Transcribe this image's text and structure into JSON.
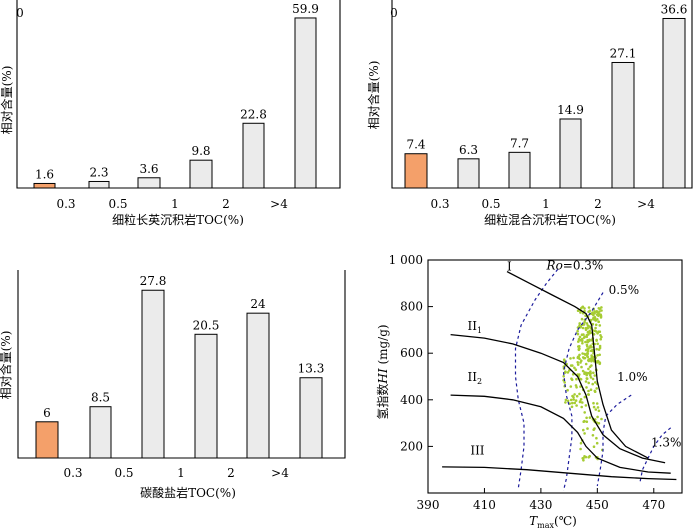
{
  "chart_data": [
    {
      "type": "bar",
      "xlabel": "细粒长英沉积岩TOC(%)",
      "ylabel": "相对含量(%)",
      "tick_labels": [
        "0",
        "0.3",
        "0.5",
        "1",
        "2",
        ">4"
      ],
      "categories": [
        "0-0.3",
        "0.3-0.5",
        "0.5-1",
        "1-2",
        "2-4",
        ">4"
      ],
      "values": [
        1.6,
        2.3,
        3.6,
        9.8,
        22.8,
        59.9
      ],
      "value_labels": [
        "1.6",
        "2.3",
        "3.6",
        "9.8",
        "22.8",
        "59.9"
      ],
      "highlight_index": 0,
      "colors": {
        "highlight": "#f4a06a",
        "bar": "#ebebeb"
      }
    },
    {
      "type": "bar",
      "xlabel": "细粒混合沉积岩TOC(%)",
      "ylabel": "相对含量(%)",
      "tick_labels": [
        "0",
        "0.3",
        "0.5",
        "1",
        "2",
        ">4"
      ],
      "categories": [
        "0-0.3",
        "0.3-0.5",
        "0.5-1",
        "1-2",
        "2-4",
        ">4"
      ],
      "values": [
        7.4,
        6.3,
        7.7,
        14.9,
        27.1,
        36.6
      ],
      "value_labels": [
        "7.4",
        "6.3",
        "7.7",
        "14.9",
        "27.1",
        "36.6"
      ],
      "highlight_index": 0,
      "colors": {
        "highlight": "#f4a06a",
        "bar": "#ebebeb"
      }
    },
    {
      "type": "bar",
      "xlabel": "碳酸盐岩TOC(%)",
      "ylabel": "相对含量(%)",
      "tick_labels": [
        "0.3",
        "0.5",
        "1",
        "2",
        ">4"
      ],
      "categories": [
        "0-0.3",
        "0.3-0.5",
        "0.5-1",
        "1-2",
        "2-4",
        ">4"
      ],
      "values": [
        6,
        8.5,
        27.8,
        20.5,
        24,
        13.3
      ],
      "value_labels": [
        "6",
        "8.5",
        "27.8",
        "20.5",
        "24",
        "13.3"
      ],
      "highlight_index": 0,
      "colors": {
        "highlight": "#f4a06a",
        "bar": "#ebebeb"
      }
    },
    {
      "type": "scatter",
      "xlabel_main": "T",
      "xlabel_sub": "max",
      "xlabel_unit": "(℃)",
      "ylabel_prefix": "氢指数",
      "ylabel_italic": "HI",
      "ylabel_unit": " (mg/g)",
      "xlim": [
        390,
        480
      ],
      "ylim": [
        0,
        1000
      ],
      "x_ticks": [
        390,
        410,
        430,
        450,
        470
      ],
      "x_tick_labels": [
        "390",
        "410",
        "430",
        "450",
        "470"
      ],
      "y_ticks": [
        200,
        400,
        600,
        800,
        1000
      ],
      "y_tick_labels": [
        "200",
        "400",
        "600",
        "800",
        "1 000"
      ],
      "kerogen_labels": [
        {
          "label": "I",
          "sub": "",
          "x": 418,
          "y": 955
        },
        {
          "label": "II",
          "sub": "1",
          "x": 404,
          "y": 700
        },
        {
          "label": "II",
          "sub": "2",
          "x": 404,
          "y": 480
        },
        {
          "label": "III",
          "sub": "",
          "x": 405,
          "y": 165
        }
      ],
      "ro_labels": [
        {
          "prefix": "Ro",
          "text": "=0.3%",
          "x": 432,
          "y": 960
        },
        {
          "prefix": "",
          "text": "0.5%",
          "x": 454,
          "y": 855
        },
        {
          "prefix": "",
          "text": "1.0%",
          "x": 457,
          "y": 480
        },
        {
          "prefix": "",
          "text": "1.3%",
          "x": 469,
          "y": 200
        }
      ],
      "kerogen_curves": [
        [
          [
            418,
            950
          ],
          [
            426,
            900
          ],
          [
            434,
            850
          ],
          [
            442,
            800
          ],
          [
            446,
            770
          ],
          [
            448,
            720
          ],
          [
            449,
            600
          ],
          [
            450,
            480
          ],
          [
            452,
            380
          ],
          [
            455,
            270
          ],
          [
            460,
            200
          ],
          [
            468,
            150
          ]
        ],
        [
          [
            398,
            680
          ],
          [
            410,
            665
          ],
          [
            420,
            640
          ],
          [
            430,
            600
          ],
          [
            438,
            560
          ],
          [
            443,
            500
          ],
          [
            446,
            420
          ],
          [
            448,
            330
          ],
          [
            452,
            250
          ],
          [
            458,
            190
          ],
          [
            466,
            150
          ],
          [
            474,
            130
          ]
        ],
        [
          [
            398,
            420
          ],
          [
            410,
            415
          ],
          [
            420,
            400
          ],
          [
            430,
            370
          ],
          [
            438,
            320
          ],
          [
            443,
            260
          ],
          [
            446,
            200
          ],
          [
            450,
            150
          ],
          [
            458,
            110
          ],
          [
            468,
            90
          ],
          [
            476,
            85
          ]
        ],
        [
          [
            395,
            112
          ],
          [
            410,
            110
          ],
          [
            425,
            100
          ],
          [
            440,
            85
          ],
          [
            455,
            70
          ],
          [
            468,
            62
          ],
          [
            478,
            58
          ]
        ]
      ],
      "ro_curves": [
        [
          [
            436,
            960
          ],
          [
            432,
            900
          ],
          [
            428,
            830
          ],
          [
            423,
            720
          ],
          [
            421,
            620
          ],
          [
            421,
            500
          ],
          [
            422,
            400
          ],
          [
            424,
            300
          ],
          [
            424,
            200
          ],
          [
            423,
            100
          ],
          [
            422,
            20
          ]
        ],
        [
          [
            452,
            860
          ],
          [
            448,
            780
          ],
          [
            443,
            700
          ],
          [
            440,
            620
          ],
          [
            438,
            520
          ],
          [
            439,
            420
          ],
          [
            441,
            330
          ],
          [
            441,
            240
          ],
          [
            440,
            150
          ],
          [
            439,
            60
          ],
          [
            438,
            10
          ]
        ],
        [
          [
            462,
            420
          ],
          [
            457,
            380
          ],
          [
            453,
            330
          ],
          [
            452,
            260
          ],
          [
            452,
            180
          ],
          [
            451,
            100
          ],
          [
            450,
            30
          ]
        ],
        [
          [
            476,
            280
          ],
          [
            473,
            250
          ],
          [
            470,
            200
          ],
          [
            468,
            150
          ],
          [
            466,
            100
          ],
          [
            465,
            40
          ]
        ]
      ],
      "point_color": "#a6cc33",
      "line_color": "#000000",
      "ro_color": "#1c1c9c"
    }
  ]
}
